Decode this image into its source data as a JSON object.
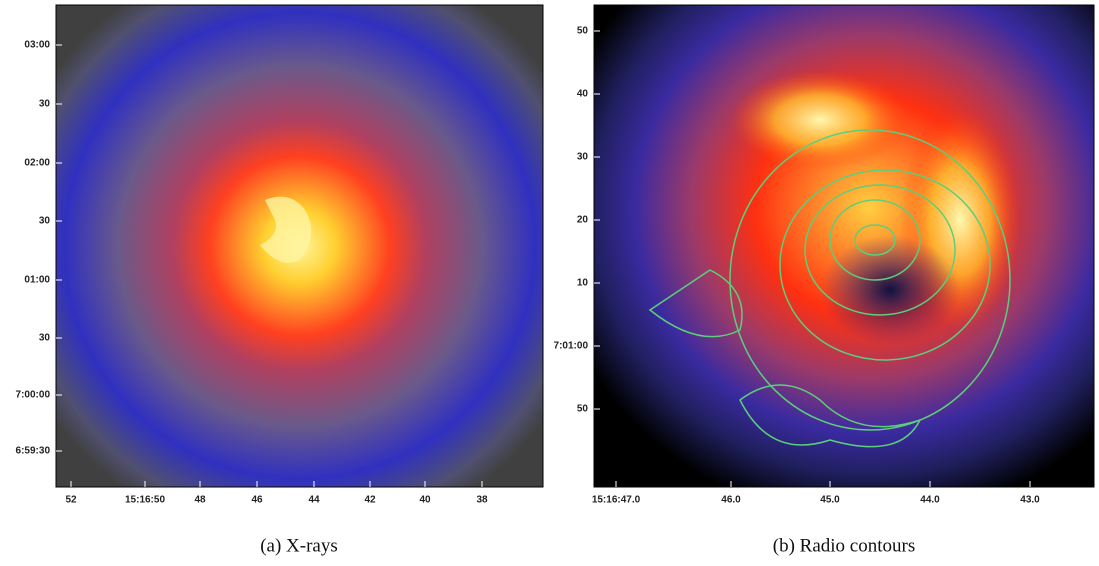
{
  "panels": [
    {
      "caption": "(a) X-rays",
      "y_labels": [
        "03:00",
        "30",
        "02:00",
        "30",
        "01:00",
        "30",
        "7:00:00",
        "6:59:30"
      ],
      "x_labels": [
        "52",
        "15:16:50",
        "48",
        "46",
        "44",
        "42",
        "40",
        "38"
      ]
    },
    {
      "caption": "(b) Radio contours",
      "y_labels": [
        "50",
        "40",
        "30",
        "20",
        "10",
        "7:01:00",
        "50"
      ],
      "x_labels": [
        "15:16:47.0",
        "46.0",
        "45.0",
        "44.0",
        "43.0"
      ]
    }
  ]
}
